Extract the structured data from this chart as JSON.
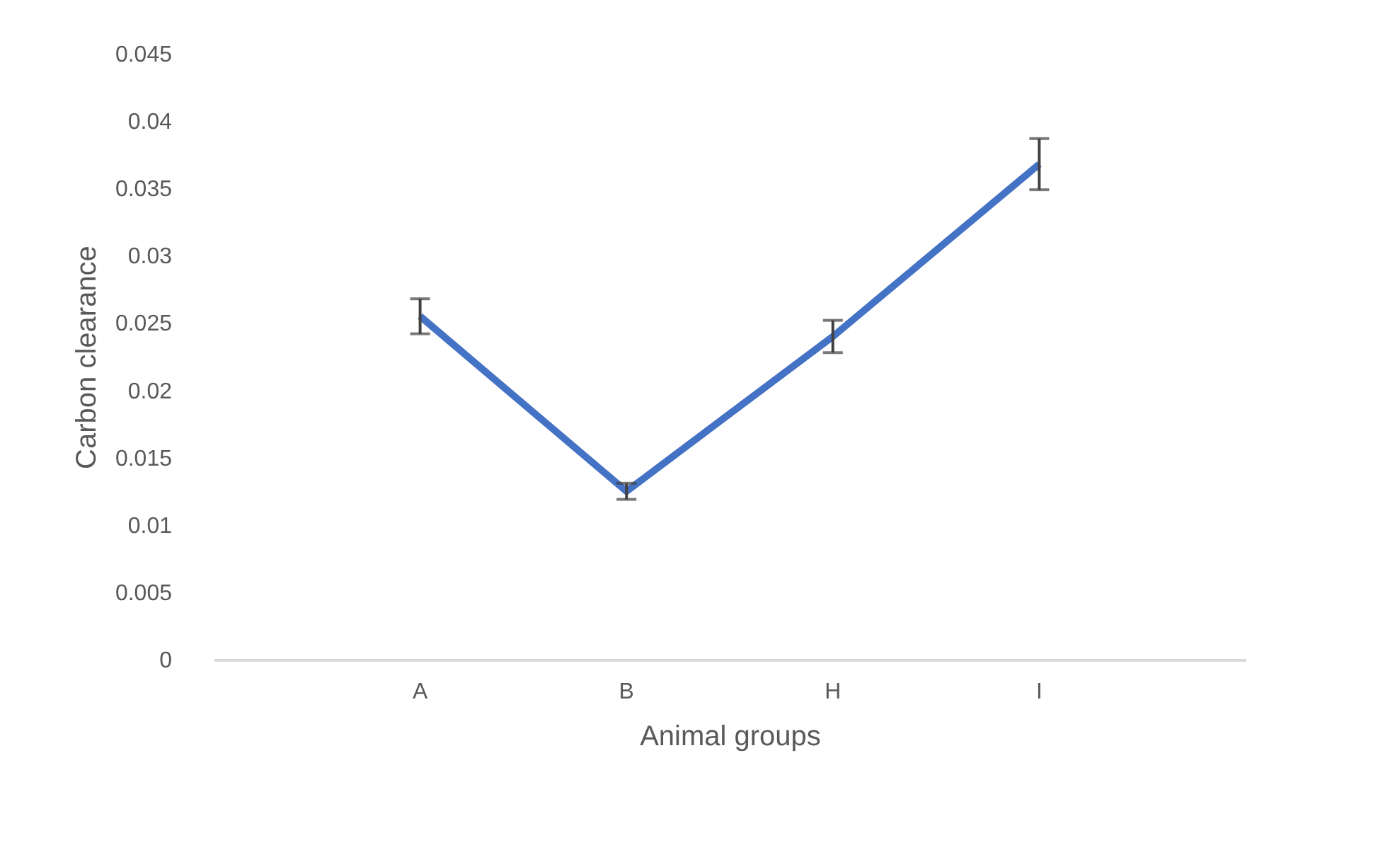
{
  "chart_data": {
    "type": "line",
    "xlabel": "Animal groups",
    "ylabel": "Carbon clearance",
    "categories": [
      "A",
      "B",
      "H",
      "I"
    ],
    "series": [
      {
        "color": "#4472c4",
        "values": [
          0.0255,
          0.0125,
          0.024,
          0.0368
        ],
        "errors": [
          0.0013,
          0.0006,
          0.0012,
          0.0019
        ]
      }
    ],
    "ylim": [
      0,
      0.045
    ],
    "yticks": [
      0,
      0.005,
      0.01,
      0.015,
      0.02,
      0.025,
      0.03,
      0.035,
      0.04,
      0.045
    ],
    "grid": false,
    "marker": "none",
    "line_style": "solid"
  }
}
